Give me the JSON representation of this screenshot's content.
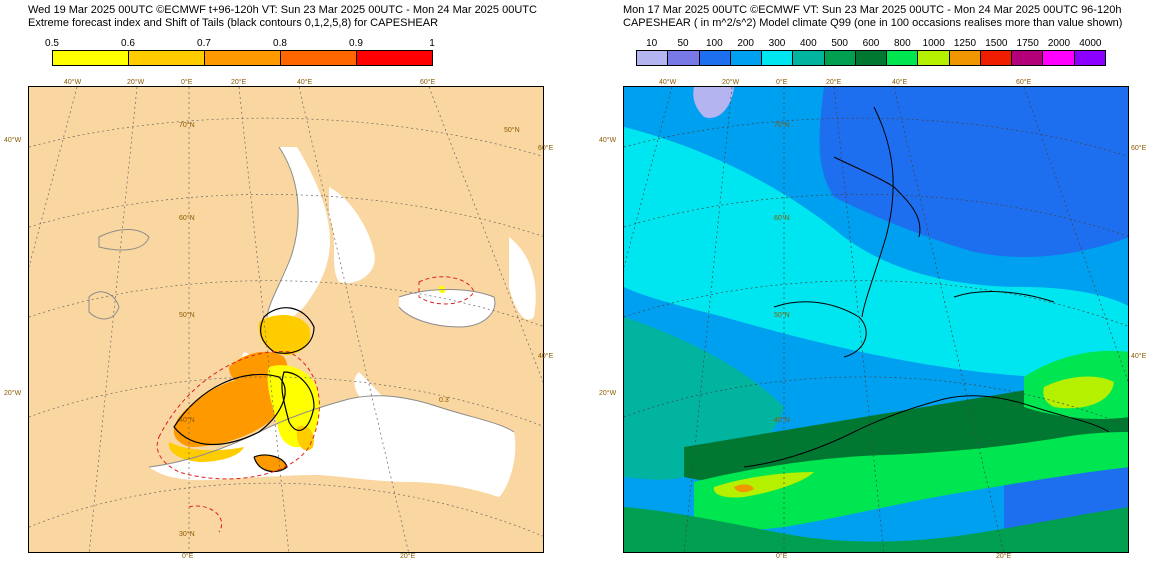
{
  "left": {
    "header_line1": "Wed 19 Mar 2025 00UTC ©ECMWF t+96-120h  VT: Sun 23 Mar 2025 00UTC - Mon 24 Mar 2025 00UTC",
    "header_line2": "Extreme forecast index and Shift of Tails (black contours 0,1,2,5,8) for CAPESHEAR",
    "colorbar_ticks": [
      "0.5",
      "0.6",
      "0.7",
      "0.8",
      "0.9",
      "1"
    ],
    "colorbar_colors": [
      "#ffff00",
      "#ffcc00",
      "#ff9900",
      "#ff6600",
      "#ff0000"
    ],
    "contour_label": "0.3",
    "lon_labels_top": [
      "40°W",
      "20°W",
      "0°E",
      "20°E",
      "40°E",
      "60°E"
    ],
    "lat_labels_inner": [
      "70°N",
      "60°N",
      "50°N",
      "40°N",
      "30°N"
    ],
    "lon_labels_bottom": [
      "0°E",
      "20°E"
    ],
    "side_labels_left": [
      "40°W",
      "20°W"
    ],
    "side_labels_right": [
      "60°E",
      "40°E"
    ],
    "inner_right_label": "50°N"
  },
  "right": {
    "header_line1": "Mon 17 Mar 2025 00UTC ©ECMWF VT: Sun 23 Mar 2025 00UTC - Mon 24 Mar 2025 00UTC  96-120h",
    "header_line2": "CAPESHEAR ( in m^2/s^2)  Model climate Q99 (one in 100 occasions realises more than value shown)",
    "colorbar_ticks": [
      "10",
      "50",
      "100",
      "200",
      "300",
      "400",
      "500",
      "600",
      "800",
      "1000",
      "1250",
      "1500",
      "1750",
      "2000",
      "4000"
    ],
    "colorbar_colors": [
      "#b4b4f0",
      "#7878e6",
      "#1e6ef0",
      "#00a0f0",
      "#00e6f0",
      "#00b4a0",
      "#00a050",
      "#007832",
      "#00e650",
      "#b4f000",
      "#f09600",
      "#f01e00",
      "#b40078",
      "#ff00ff",
      "#8c00ff"
    ],
    "lon_labels_top": [
      "40°W",
      "20°W",
      "0°E",
      "20°E",
      "40°E",
      "60°E"
    ],
    "lat_labels_inner": [
      "70°N",
      "60°N",
      "50°N",
      "40°N"
    ],
    "lon_labels_bottom": [
      "0°E",
      "20°E"
    ],
    "side_labels_left": [
      "40°W",
      "20°W"
    ],
    "side_labels_right": [
      "60°E",
      "40°E"
    ]
  }
}
